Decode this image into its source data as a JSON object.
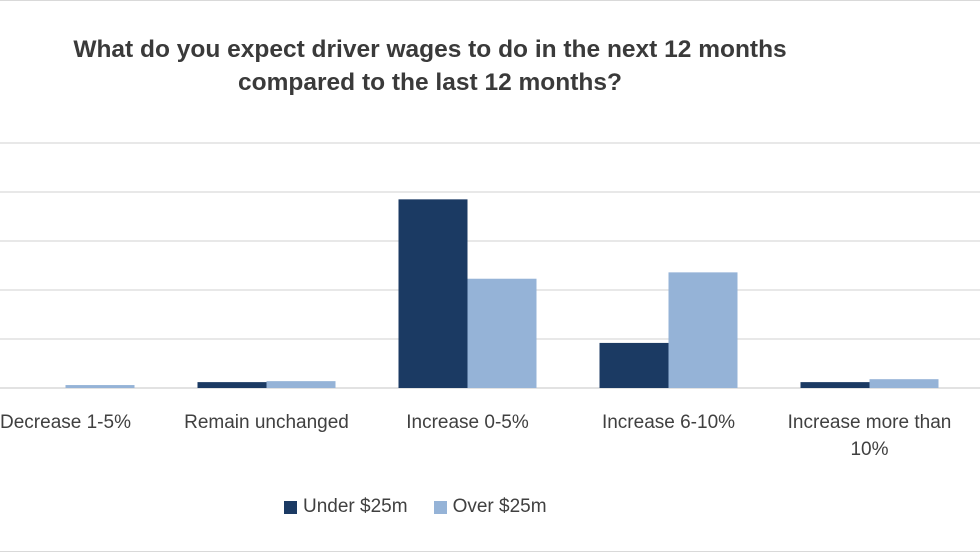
{
  "chart_data": {
    "type": "bar",
    "title_lines": [
      "What do you expect driver wages to do in the next 12 months",
      "compared to the last 12 months?"
    ],
    "categories": [
      "Decrease 1-5%",
      "Remain unchanged",
      "Increase 0-5%",
      "Increase 6-10%",
      "Increase more than 10%"
    ],
    "category_lines": [
      [
        "Decrease 1-5%"
      ],
      [
        "Remain unchanged"
      ],
      [
        "Increase 0-5%"
      ],
      [
        "Increase 6-10%"
      ],
      [
        "Increase more than",
        "10%"
      ]
    ],
    "series": [
      {
        "name": "Under $25m",
        "color": "#1b3a63",
        "values": [
          0,
          1.2,
          38.5,
          9.2,
          1.2
        ]
      },
      {
        "name": "Over $25m",
        "color": "#95b3d7",
        "values": [
          0.6,
          1.4,
          22.3,
          23.6,
          1.8
        ]
      }
    ],
    "ylim": [
      0,
      50
    ],
    "grid": true,
    "legend_position": "bottom"
  }
}
